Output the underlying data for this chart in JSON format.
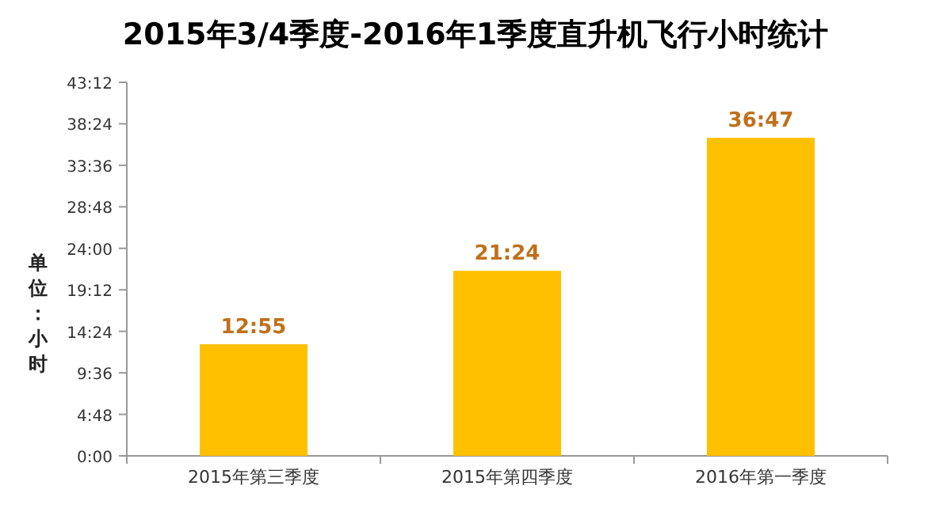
{
  "chart_data": {
    "type": "bar",
    "title": "2015年3/4季度-2016年1季度直升机飞行小时统计",
    "ylabel": "单位：小时",
    "categories": [
      "2015年第三季度",
      "2015年第四季度",
      "2016年第一季度"
    ],
    "values": [
      12.9167,
      21.4,
      36.7833
    ],
    "value_labels": [
      "12:55",
      "21:24",
      "36:47"
    ],
    "color": "#ffc000",
    "ylim": [
      0,
      43.2
    ],
    "yticks": [
      {
        "value": 0,
        "label": "0:00"
      },
      {
        "value": 4.8,
        "label": "4:48"
      },
      {
        "value": 9.6,
        "label": "9:36"
      },
      {
        "value": 14.4,
        "label": "14:24"
      },
      {
        "value": 19.2,
        "label": "19:12"
      },
      {
        "value": 24,
        "label": "24:00"
      },
      {
        "value": 28.8,
        "label": "28:48"
      },
      {
        "value": 33.6,
        "label": "33:36"
      },
      {
        "value": 38.4,
        "label": "38:24"
      },
      {
        "value": 43.2,
        "label": "43:12"
      }
    ],
    "grid": false
  }
}
